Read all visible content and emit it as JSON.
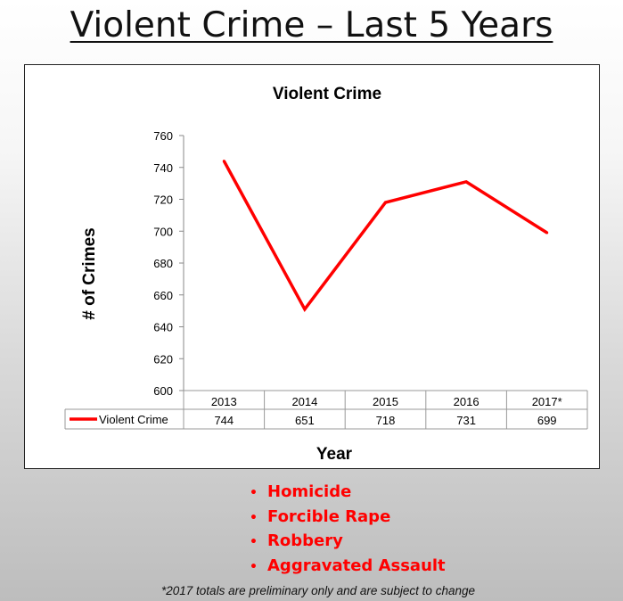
{
  "slide": {
    "title": "Violent Crime – Last 5 Years",
    "bullets": [
      "Homicide",
      "Forcible Rape",
      "Robbery",
      "Aggravated Assault"
    ],
    "footnote": "*2017 totals are preliminary only and are subject to change"
  },
  "chart_data": {
    "type": "line",
    "title": "Violent  Crime",
    "xlabel": "Year",
    "ylabel": "# of Crimes",
    "categories": [
      "2013",
      "2014",
      "2015",
      "2016",
      "2017*"
    ],
    "series": [
      {
        "name": "Violent Crime",
        "values": [
          744,
          651,
          718,
          731,
          699
        ],
        "color": "#ff0000"
      }
    ],
    "ylim": [
      600,
      760
    ],
    "yticks": [
      600,
      620,
      640,
      660,
      680,
      700,
      720,
      740,
      760
    ],
    "grid": false,
    "legend": "data-table"
  }
}
